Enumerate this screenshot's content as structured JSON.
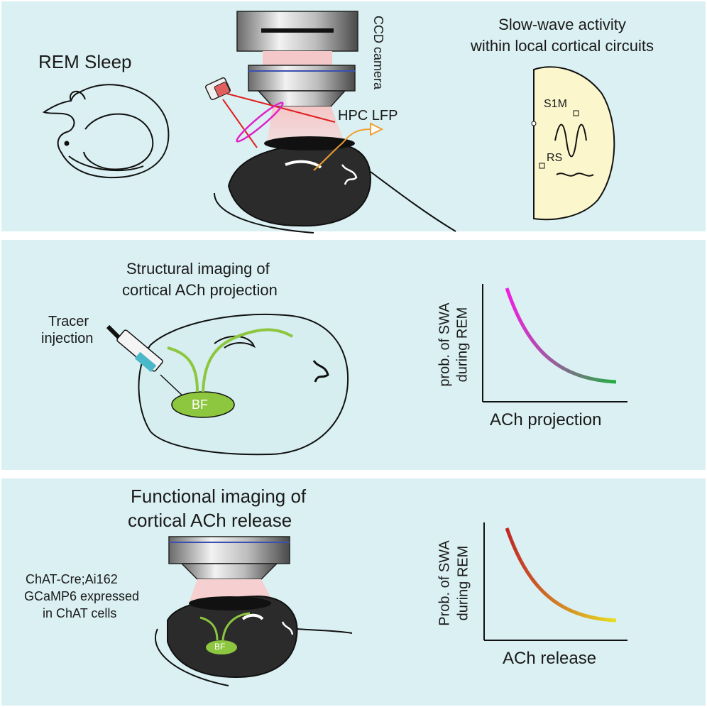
{
  "panel_top": {
    "rem_sleep": "REM Sleep",
    "camera_label": "CCD camera",
    "lfp_label": "HPC LFP",
    "swa_title_line1": "Slow-wave activity",
    "swa_title_line2": "within local cortical circuits",
    "region_s1m": "S1M",
    "region_rs": "RS"
  },
  "panel_middle": {
    "title_line1": "Structural imaging of",
    "title_line2": "cortical ACh projection",
    "tracer_line1": "Tracer",
    "tracer_line2": "injection",
    "bf_label": "BF",
    "ylabel_line1": "prob. of SWA",
    "ylabel_line2": "during REM",
    "xlabel": "ACh projection"
  },
  "panel_bottom": {
    "title_line1": "Functional imaging of",
    "title_line2": "cortical ACh release",
    "mouse_line1": "ChAT-Cre;Ai162",
    "mouse_line2": "GCaMP6 expressed",
    "mouse_line3": "in ChAT cells",
    "bf_label": "BF",
    "ylabel_line1": "Prob. of SWA",
    "ylabel_line2": "during REM",
    "xlabel": "ACh release"
  },
  "colors": {
    "panel_bg": "#dbf0f2",
    "laser": "#e02020",
    "lens": "#e020c8",
    "lfp": "#f0a030",
    "basal_forebrain": "#8dc63f",
    "cortex_map": "#fbf6cc",
    "curve_mid_start": "#f020e0",
    "curve_mid_end": "#20b040",
    "curve_bot_start": "#c02828",
    "curve_bot_end": "#e8e020"
  },
  "icons": [
    "sleeping-mouse-icon",
    "ccd-camera-icon",
    "led-light-source-icon",
    "syringe-icon",
    "brain-icon",
    "cortex-map-icon"
  ]
}
